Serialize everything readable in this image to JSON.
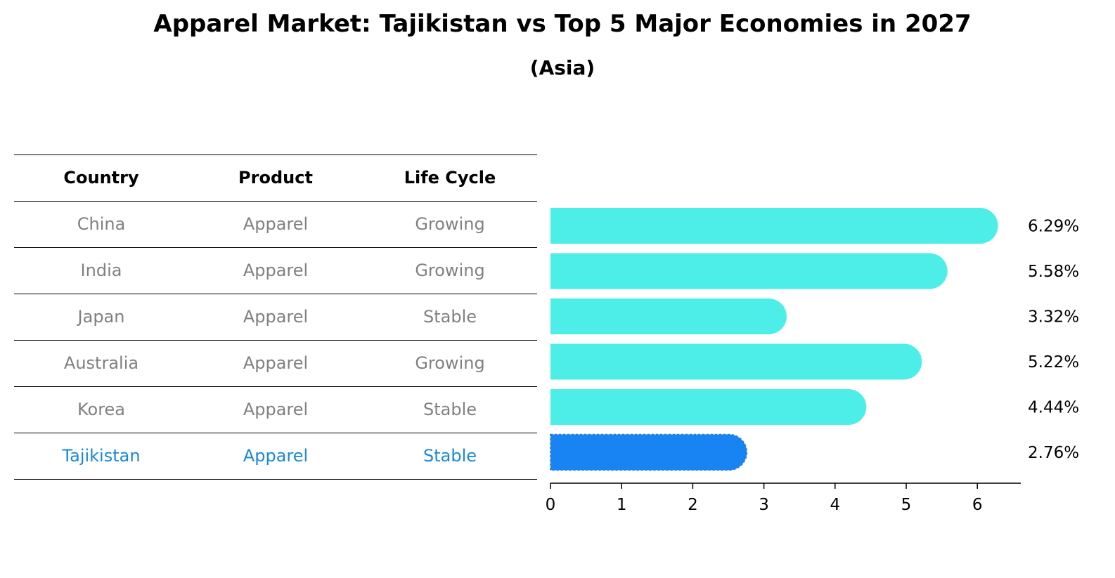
{
  "title": "Apparel Market: Tajikistan vs Top 5 Major Economies in 2027",
  "subtitle": "(Asia)",
  "table": {
    "headers": [
      "Country",
      "Product",
      "Life Cycle"
    ],
    "rows": [
      [
        "China",
        "Apparel",
        "Growing"
      ],
      [
        "India",
        "Apparel",
        "Growing"
      ],
      [
        "Japan",
        "Apparel",
        "Stable"
      ],
      [
        "Australia",
        "Apparel",
        "Growing"
      ],
      [
        "Korea",
        "Apparel",
        "Stable"
      ],
      [
        "Tajikistan",
        "Apparel",
        "Stable"
      ]
    ],
    "highlight_row": 5,
    "text_color": "#808080",
    "highlight_color": "#1a88d8"
  },
  "chart_data": {
    "type": "bar",
    "orientation": "horizontal",
    "categories": [
      "China",
      "India",
      "Japan",
      "Australia",
      "Korea",
      "Tajikistan"
    ],
    "values": [
      6.29,
      5.58,
      3.32,
      5.22,
      4.44,
      2.76
    ],
    "value_labels": [
      "6.29%",
      "5.58%",
      "3.32%",
      "5.22%",
      "4.44%",
      "2.76%"
    ],
    "xticks": [
      0,
      1,
      2,
      3,
      4,
      5,
      6
    ],
    "xlim": [
      0,
      6.6
    ],
    "bar_color": "#4deee8",
    "highlight_color": "#1884f4",
    "highlight_index": 5,
    "grid": false
  }
}
